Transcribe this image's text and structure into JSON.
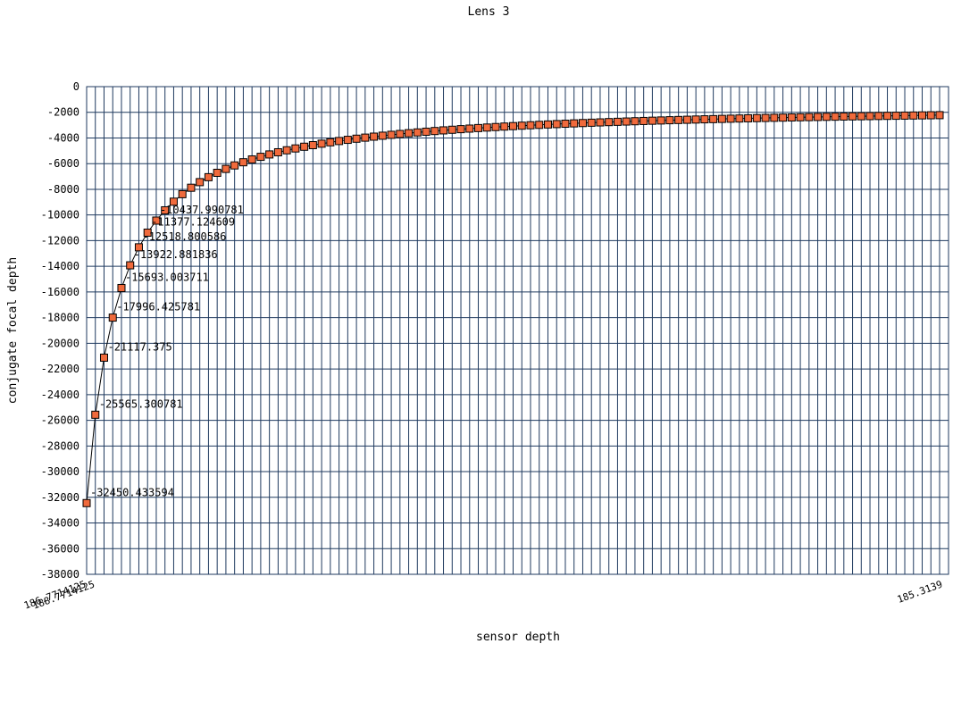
{
  "chart_data": {
    "type": "line",
    "title": "Lens 3",
    "xlabel": "sensor depth",
    "ylabel": "conjugate focal depth",
    "ylim": [
      -38000,
      0
    ],
    "yticks": [
      0,
      -2000,
      -4000,
      -6000,
      -8000,
      -10000,
      -12000,
      -14000,
      -16000,
      -18000,
      -20000,
      -22000,
      -24000,
      -26000,
      -28000,
      -30000,
      -32000,
      -34000,
      -36000,
      -38000
    ],
    "grid": true,
    "series": [
      {
        "marker": "square",
        "values": [
          -32450.433594,
          -25565.300781,
          -21117.375,
          -17996.425781,
          -15693.003711,
          -13922.881836,
          -12518.800586,
          -11377.124609,
          -10437.990781,
          -9637.7,
          -8963.3,
          -8380.1,
          -7877.9,
          -7440.2,
          -7055.4,
          -6714.6,
          -6411.0,
          -6138.7,
          -5893.4,
          -5671.0,
          -5468.7,
          -5284.0,
          -5114.8,
          -4959.2,
          -4815.6,
          -4682.7,
          -4559.5,
          -4444.9,
          -4338.0,
          -4238.1,
          -4144.5,
          -4056.7,
          -3974.2,
          -3896.5,
          -3823.2,
          -3754.0,
          -3688.5,
          -3626.5,
          -3567.6,
          -3511.7,
          -3458.5,
          -3407.9,
          -3359.6,
          -3313.5,
          -3269.5,
          -3227.4,
          -3187.1,
          -3148.5,
          -3111.5,
          -3076.0,
          -3041.9,
          -3009.1,
          -2977.6,
          -2947.2,
          -2918.0,
          -2889.8,
          -2862.6,
          -2836.4,
          -2811.0,
          -2786.5,
          -2762.8,
          -2739.9,
          -2717.7,
          -2696.2,
          -2675.4,
          -2655.2,
          -2635.7,
          -2616.7,
          -2598.3,
          -2580.4,
          -2563.0,
          -2546.1,
          -2529.7,
          -2513.7,
          -2498.2,
          -2483.1,
          -2468.4,
          -2454.0,
          -2440.1,
          -2426.5,
          -2413.2,
          -2400.3,
          -2387.7,
          -2375.4,
          -2363.4,
          -2351.7,
          -2340.3,
          -2329.1,
          -2318.2,
          -2307.6,
          -2297.2,
          -2287.0,
          -2277.1,
          -2267.4,
          -2257.9,
          -2248.6,
          -2239.5,
          -2230.6,
          -2221.9
        ]
      }
    ],
    "value_labels": [
      "-32450.433594",
      "-25565.300781",
      "-21117.375",
      "-17996.425781",
      "-15693.003711",
      "-13922.881836",
      "-12518.800586",
      "-11377.124609",
      "-10437.990781"
    ],
    "x_categories_visible_first": [
      "186.7714125",
      "188.7714125"
    ],
    "x_categories_visible_last": [
      "185.3139"
    ]
  }
}
